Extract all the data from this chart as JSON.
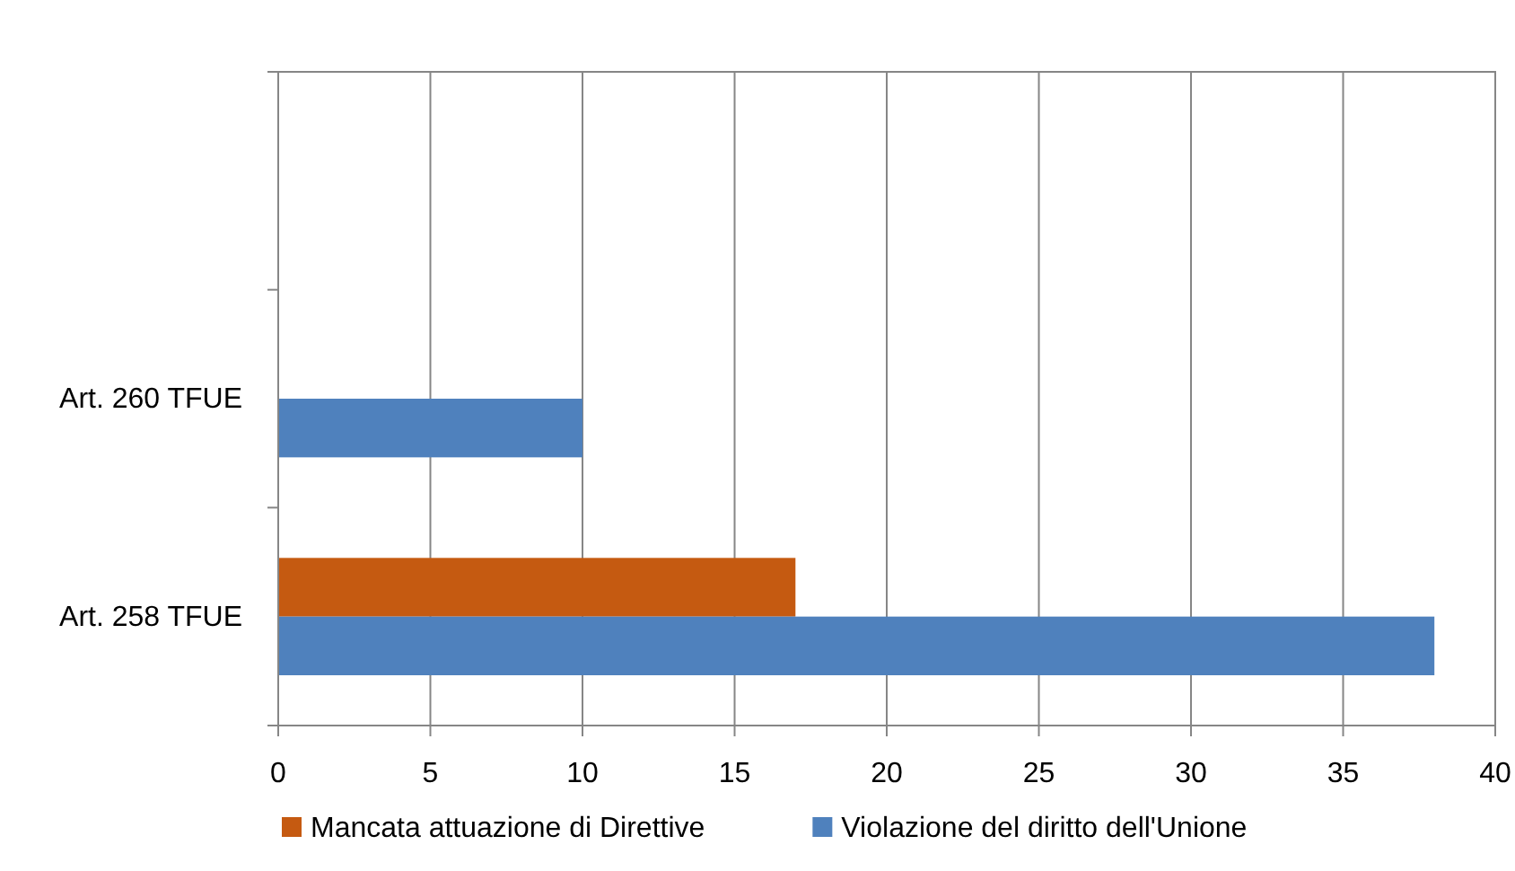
{
  "chart_data": {
    "type": "bar",
    "orientation": "horizontal",
    "categories": [
      null,
      "Art. 260 TFUE",
      "Art. 258 TFUE"
    ],
    "series": [
      {
        "name": "Mancata attuazione di Direttive",
        "color": "#c55a11",
        "values": [
          null,
          null,
          17
        ]
      },
      {
        "name": "Violazione del diritto dell'Unione",
        "color": "#4f81bd",
        "values": [
          null,
          10,
          38
        ]
      }
    ],
    "xlim": [
      0,
      40
    ],
    "xticks": [
      0,
      5,
      10,
      15,
      20,
      25,
      30,
      35,
      40
    ],
    "grid": "x",
    "legend": "bottom"
  }
}
